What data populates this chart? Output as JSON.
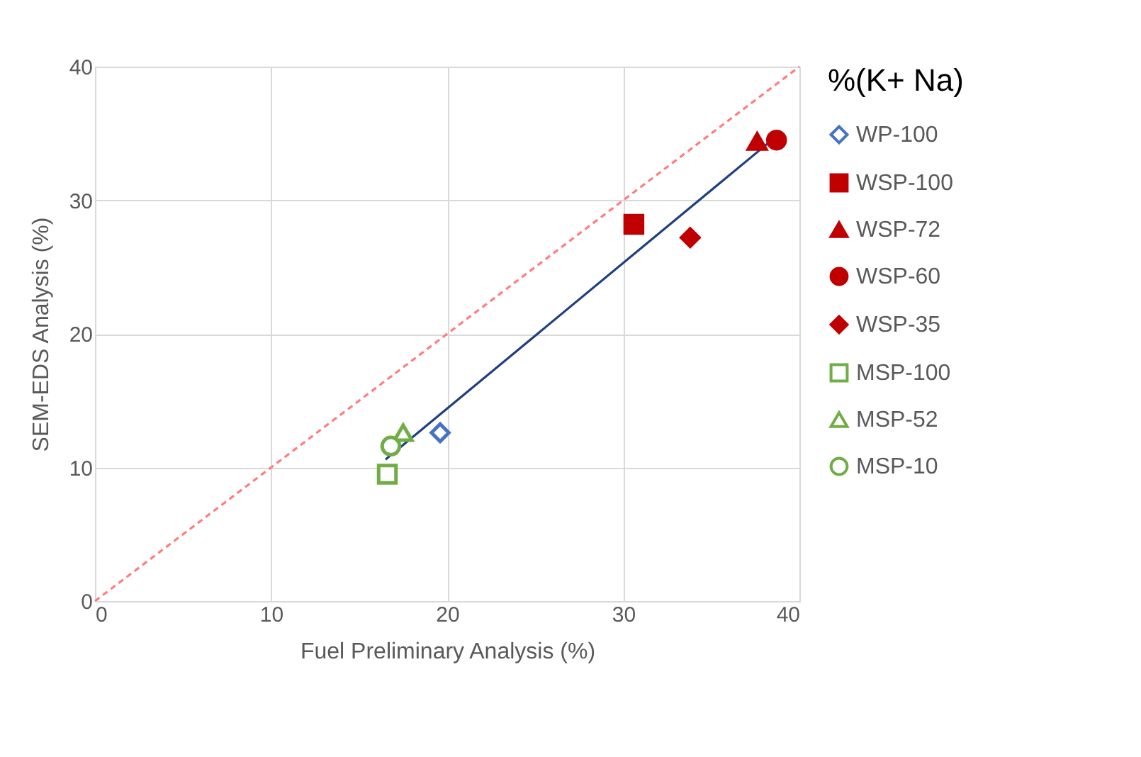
{
  "chart_data": {
    "type": "scatter",
    "xlabel": "Fuel Preliminary Analysis (%)",
    "ylabel": "SEM-EDS Analysis (%)",
    "legend_title": "%(K+ Na)",
    "legend": "right",
    "grid": true,
    "xlim": [
      0,
      40
    ],
    "ylim": [
      0,
      40
    ],
    "xticks": [
      0,
      10,
      20,
      30,
      40
    ],
    "yticks": [
      0,
      10,
      20,
      30,
      40
    ],
    "series": [
      {
        "type": "line",
        "x": [
          0,
          40
        ],
        "values": [
          0,
          40
        ],
        "color": "#ff7c80",
        "line_style": "dashed",
        "marker": "none"
      },
      {
        "type": "line",
        "x": [
          16.5,
          38.8
        ],
        "values": [
          10.6,
          34.9
        ],
        "color": "#203f7f",
        "line_style": "solid",
        "marker": "none"
      },
      {
        "name": "WP-100",
        "x": [
          19.6
        ],
        "values": [
          12.6
        ],
        "color": "#4472c4",
        "marker": "diamond"
      },
      {
        "name": "WSP-100",
        "x": [
          30.6
        ],
        "values": [
          28.2
        ],
        "color": "#c00000",
        "marker": "square"
      },
      {
        "name": "WSP-72",
        "x": [
          37.6
        ],
        "values": [
          34.4
        ],
        "color": "#c00000",
        "marker": "triangle"
      },
      {
        "name": "WSP-60",
        "x": [
          38.7
        ],
        "values": [
          34.5
        ],
        "color": "#c00000",
        "marker": "circle"
      },
      {
        "name": "WSP-35",
        "x": [
          33.8
        ],
        "values": [
          27.2
        ],
        "color": "#c00000",
        "marker": "diamond"
      },
      {
        "name": "MSP-100",
        "x": [
          16.6
        ],
        "values": [
          9.5
        ],
        "color": "#70ad47",
        "marker": "square"
      },
      {
        "name": "MSP-52",
        "x": [
          17.5
        ],
        "values": [
          12.6
        ],
        "color": "#70ad47",
        "marker": "triangle"
      },
      {
        "name": "MSP-10",
        "x": [
          16.8
        ],
        "values": [
          11.6
        ],
        "color": "#70ad47",
        "marker": "circle"
      }
    ]
  }
}
